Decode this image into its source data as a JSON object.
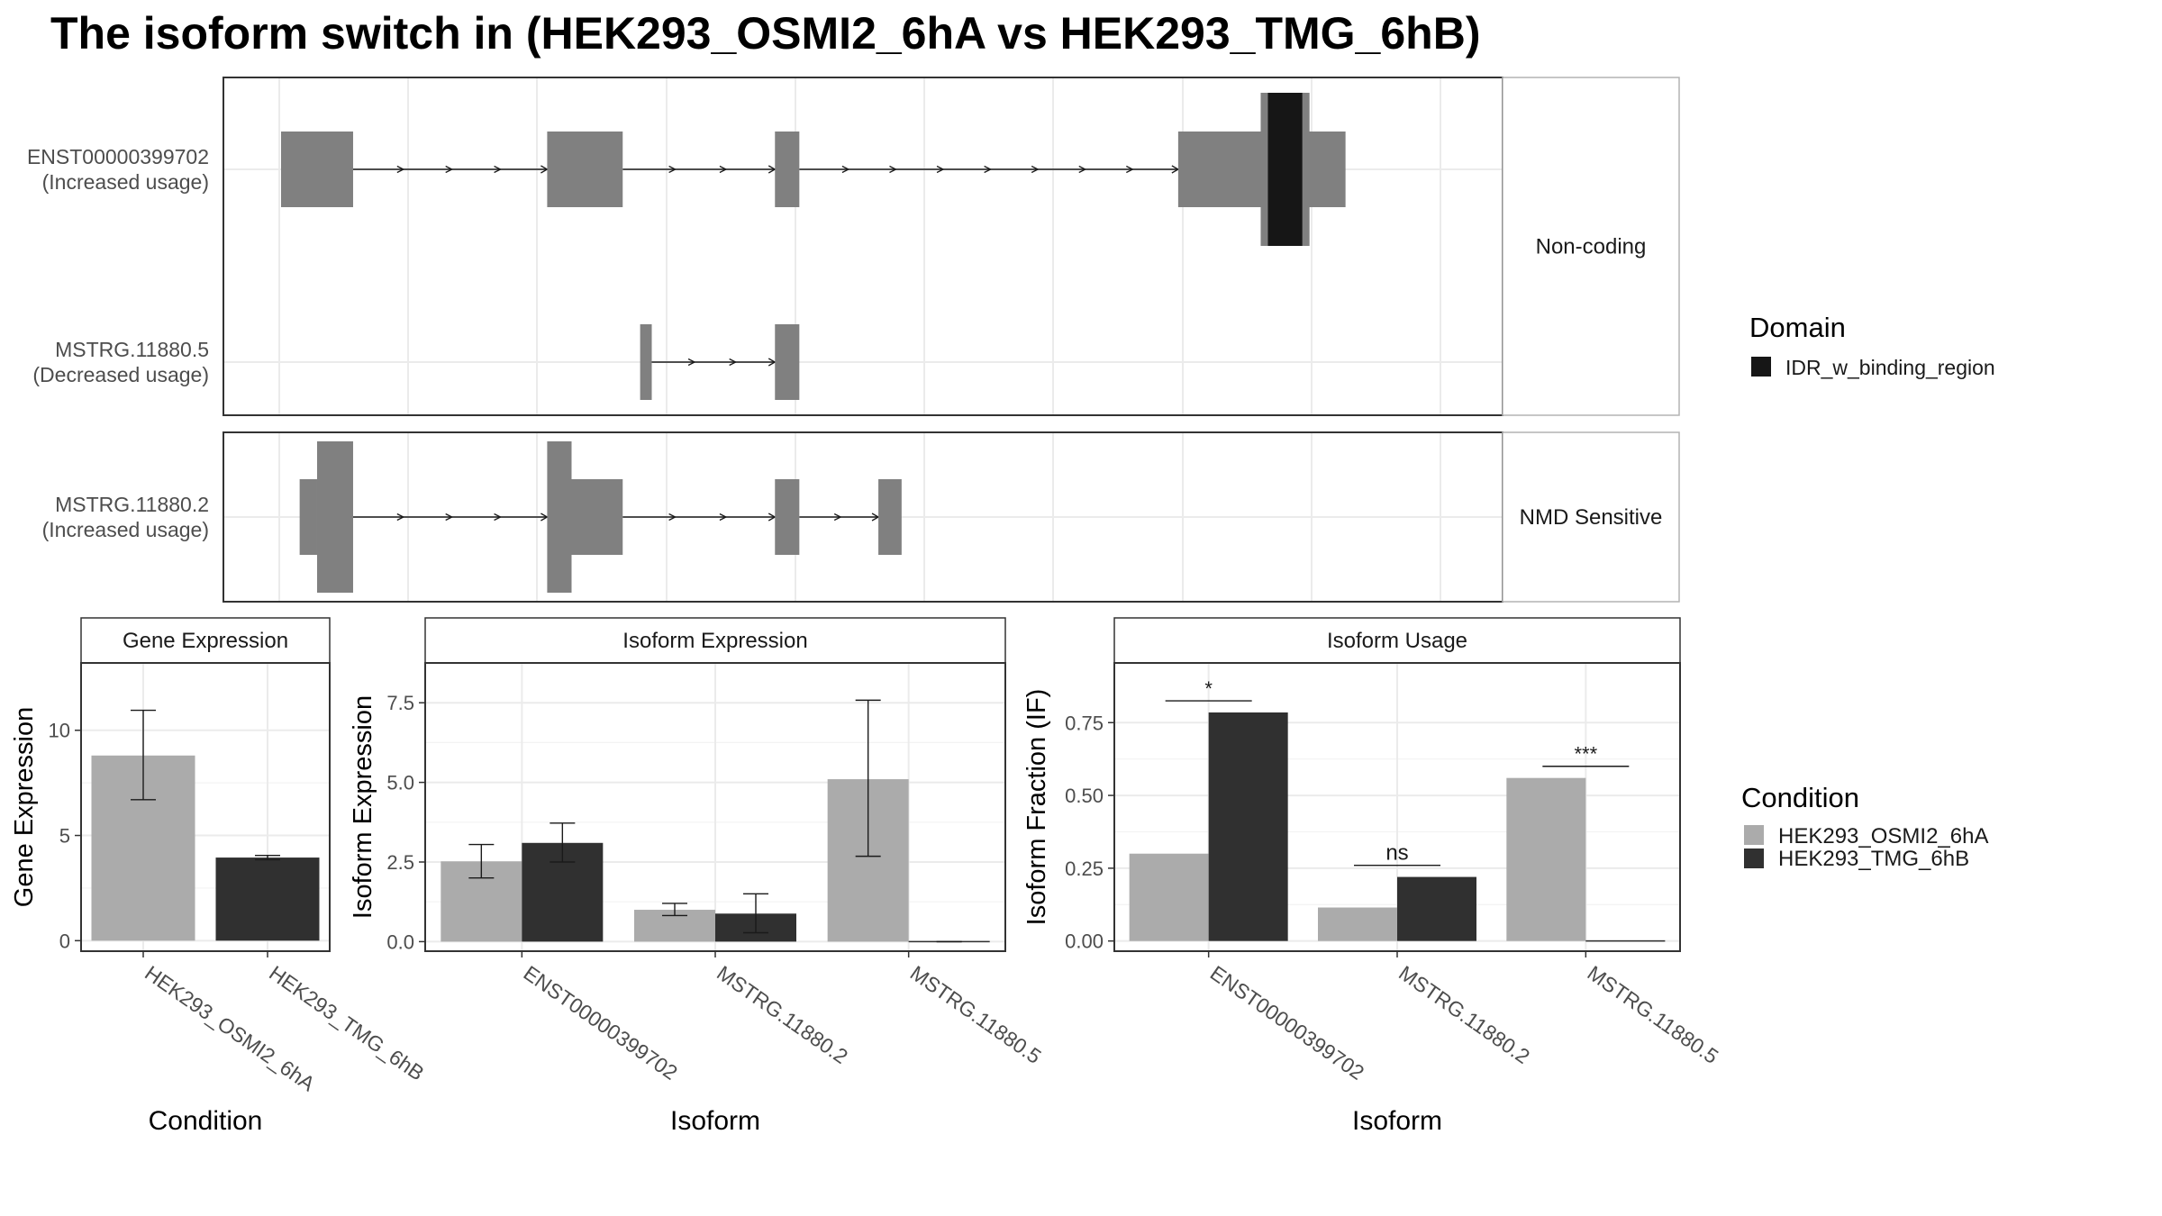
{
  "title": "The isoform switch in  (HEK293_OSMI2_6hA vs HEK293_TMG_6hB)",
  "colors": {
    "exon": "#808080",
    "domain": "#161616",
    "condition_a": "#ababab",
    "condition_b": "#303030",
    "panel_border": "#333333",
    "strip_fill": "#ffffff",
    "grid": "#ebebeb"
  },
  "chart_data": [
    {
      "type": "isoform-structure",
      "title": "The isoform switch in  (HEK293_OSMI2_6hA vs HEK293_TMG_6hB)",
      "coordinate_range": [
        0,
        1000
      ],
      "groups": [
        {
          "label": "Non-coding",
          "isoforms": [
            {
              "label": "ENST00000399702\n(Increased usage)",
              "exons": [
                {
                  "start": 0,
                  "end": 62,
                  "coding": false
                },
                {
                  "start": 229,
                  "end": 294,
                  "coding": false
                },
                {
                  "start": 425,
                  "end": 446,
                  "coding": false
                },
                {
                  "start": 772,
                  "end": 916,
                  "coding": false
                }
              ],
              "domains": [
                {
                  "start": 843,
                  "end": 885,
                  "name": "IDR_w_binding_region"
                }
              ]
            },
            {
              "label": "MSTRG.11880.5\n(Decreased usage)",
              "exons": [
                {
                  "start": 309,
                  "end": 319,
                  "coding": false
                },
                {
                  "start": 425,
                  "end": 446,
                  "coding": false
                }
              ],
              "domains": []
            }
          ]
        },
        {
          "label": "NMD Sensitive",
          "isoforms": [
            {
              "label": "MSTRG.11880.2\n(Increased usage)",
              "exons": [
                {
                  "start": 16,
                  "end": 62,
                  "coding": true,
                  "cds_start": 31
                },
                {
                  "start": 229,
                  "end": 294,
                  "coding": true,
                  "cds_end": 250
                },
                {
                  "start": 425,
                  "end": 446,
                  "coding": false
                },
                {
                  "start": 514,
                  "end": 534,
                  "coding": false
                }
              ],
              "domains": []
            }
          ]
        }
      ],
      "legend": {
        "title": "Domain",
        "entries": [
          "IDR_w_binding_region"
        ],
        "placement": "right"
      }
    },
    {
      "type": "bar",
      "title": "Gene Expression",
      "xlabel": "Condition",
      "ylabel": "Gene Expression",
      "categories": [
        "HEK293_OSMI2_6hA",
        "HEK293_TMG_6hB"
      ],
      "values": [
        8.8,
        3.95
      ],
      "error_low": [
        6.7,
        3.85
      ],
      "error_high": [
        10.95,
        4.05
      ],
      "ylim": [
        -0.5,
        13.2
      ],
      "yticks": [
        0,
        5,
        10
      ],
      "grid": true
    },
    {
      "type": "bar",
      "title": "Isoform Expression",
      "xlabel": "Isoform",
      "ylabel": "Isoform Expression",
      "categories": [
        "ENST00000399702",
        "MSTRG.11880.2",
        "MSTRG.11880.5"
      ],
      "series": [
        {
          "name": "HEK293_OSMI2_6hA",
          "values": [
            2.52,
            1.0,
            5.1
          ],
          "error_low": [
            2.0,
            0.82,
            2.68
          ],
          "error_high": [
            3.05,
            1.2,
            7.58
          ]
        },
        {
          "name": "HEK293_TMG_6hB",
          "values": [
            3.1,
            0.88,
            0.0
          ],
          "error_low": [
            2.5,
            0.28,
            0.0
          ],
          "error_high": [
            3.72,
            1.5,
            0.0
          ]
        }
      ],
      "ylim": [
        -0.3,
        8.75
      ],
      "yticks": [
        "0.0",
        "2.5",
        "5.0",
        "7.5"
      ],
      "grid": true
    },
    {
      "type": "bar",
      "title": "Isoform Usage",
      "xlabel": "Isoform",
      "ylabel": "Isoform Fraction (IF)",
      "categories": [
        "ENST00000399702",
        "MSTRG.11880.2",
        "MSTRG.11880.5"
      ],
      "series": [
        {
          "name": "HEK293_OSMI2_6hA",
          "values": [
            0.3,
            0.115,
            0.56
          ]
        },
        {
          "name": "HEK293_TMG_6hB",
          "values": [
            0.785,
            0.22,
            0.0
          ]
        }
      ],
      "annotations": [
        {
          "category": "ENST00000399702",
          "label": "*",
          "y": 0.825
        },
        {
          "category": "MSTRG.11880.2",
          "label": "ns",
          "y": 0.26
        },
        {
          "category": "MSTRG.11880.5",
          "label": "***",
          "y": 0.6
        }
      ],
      "ylim": [
        -0.035,
        0.955
      ],
      "yticks": [
        "0.00",
        "0.25",
        "0.50",
        "0.75"
      ],
      "grid": true,
      "legend": {
        "title": "Condition",
        "entries": [
          "HEK293_OSMI2_6hA",
          "HEK293_TMG_6hB"
        ],
        "placement": "right"
      }
    }
  ]
}
